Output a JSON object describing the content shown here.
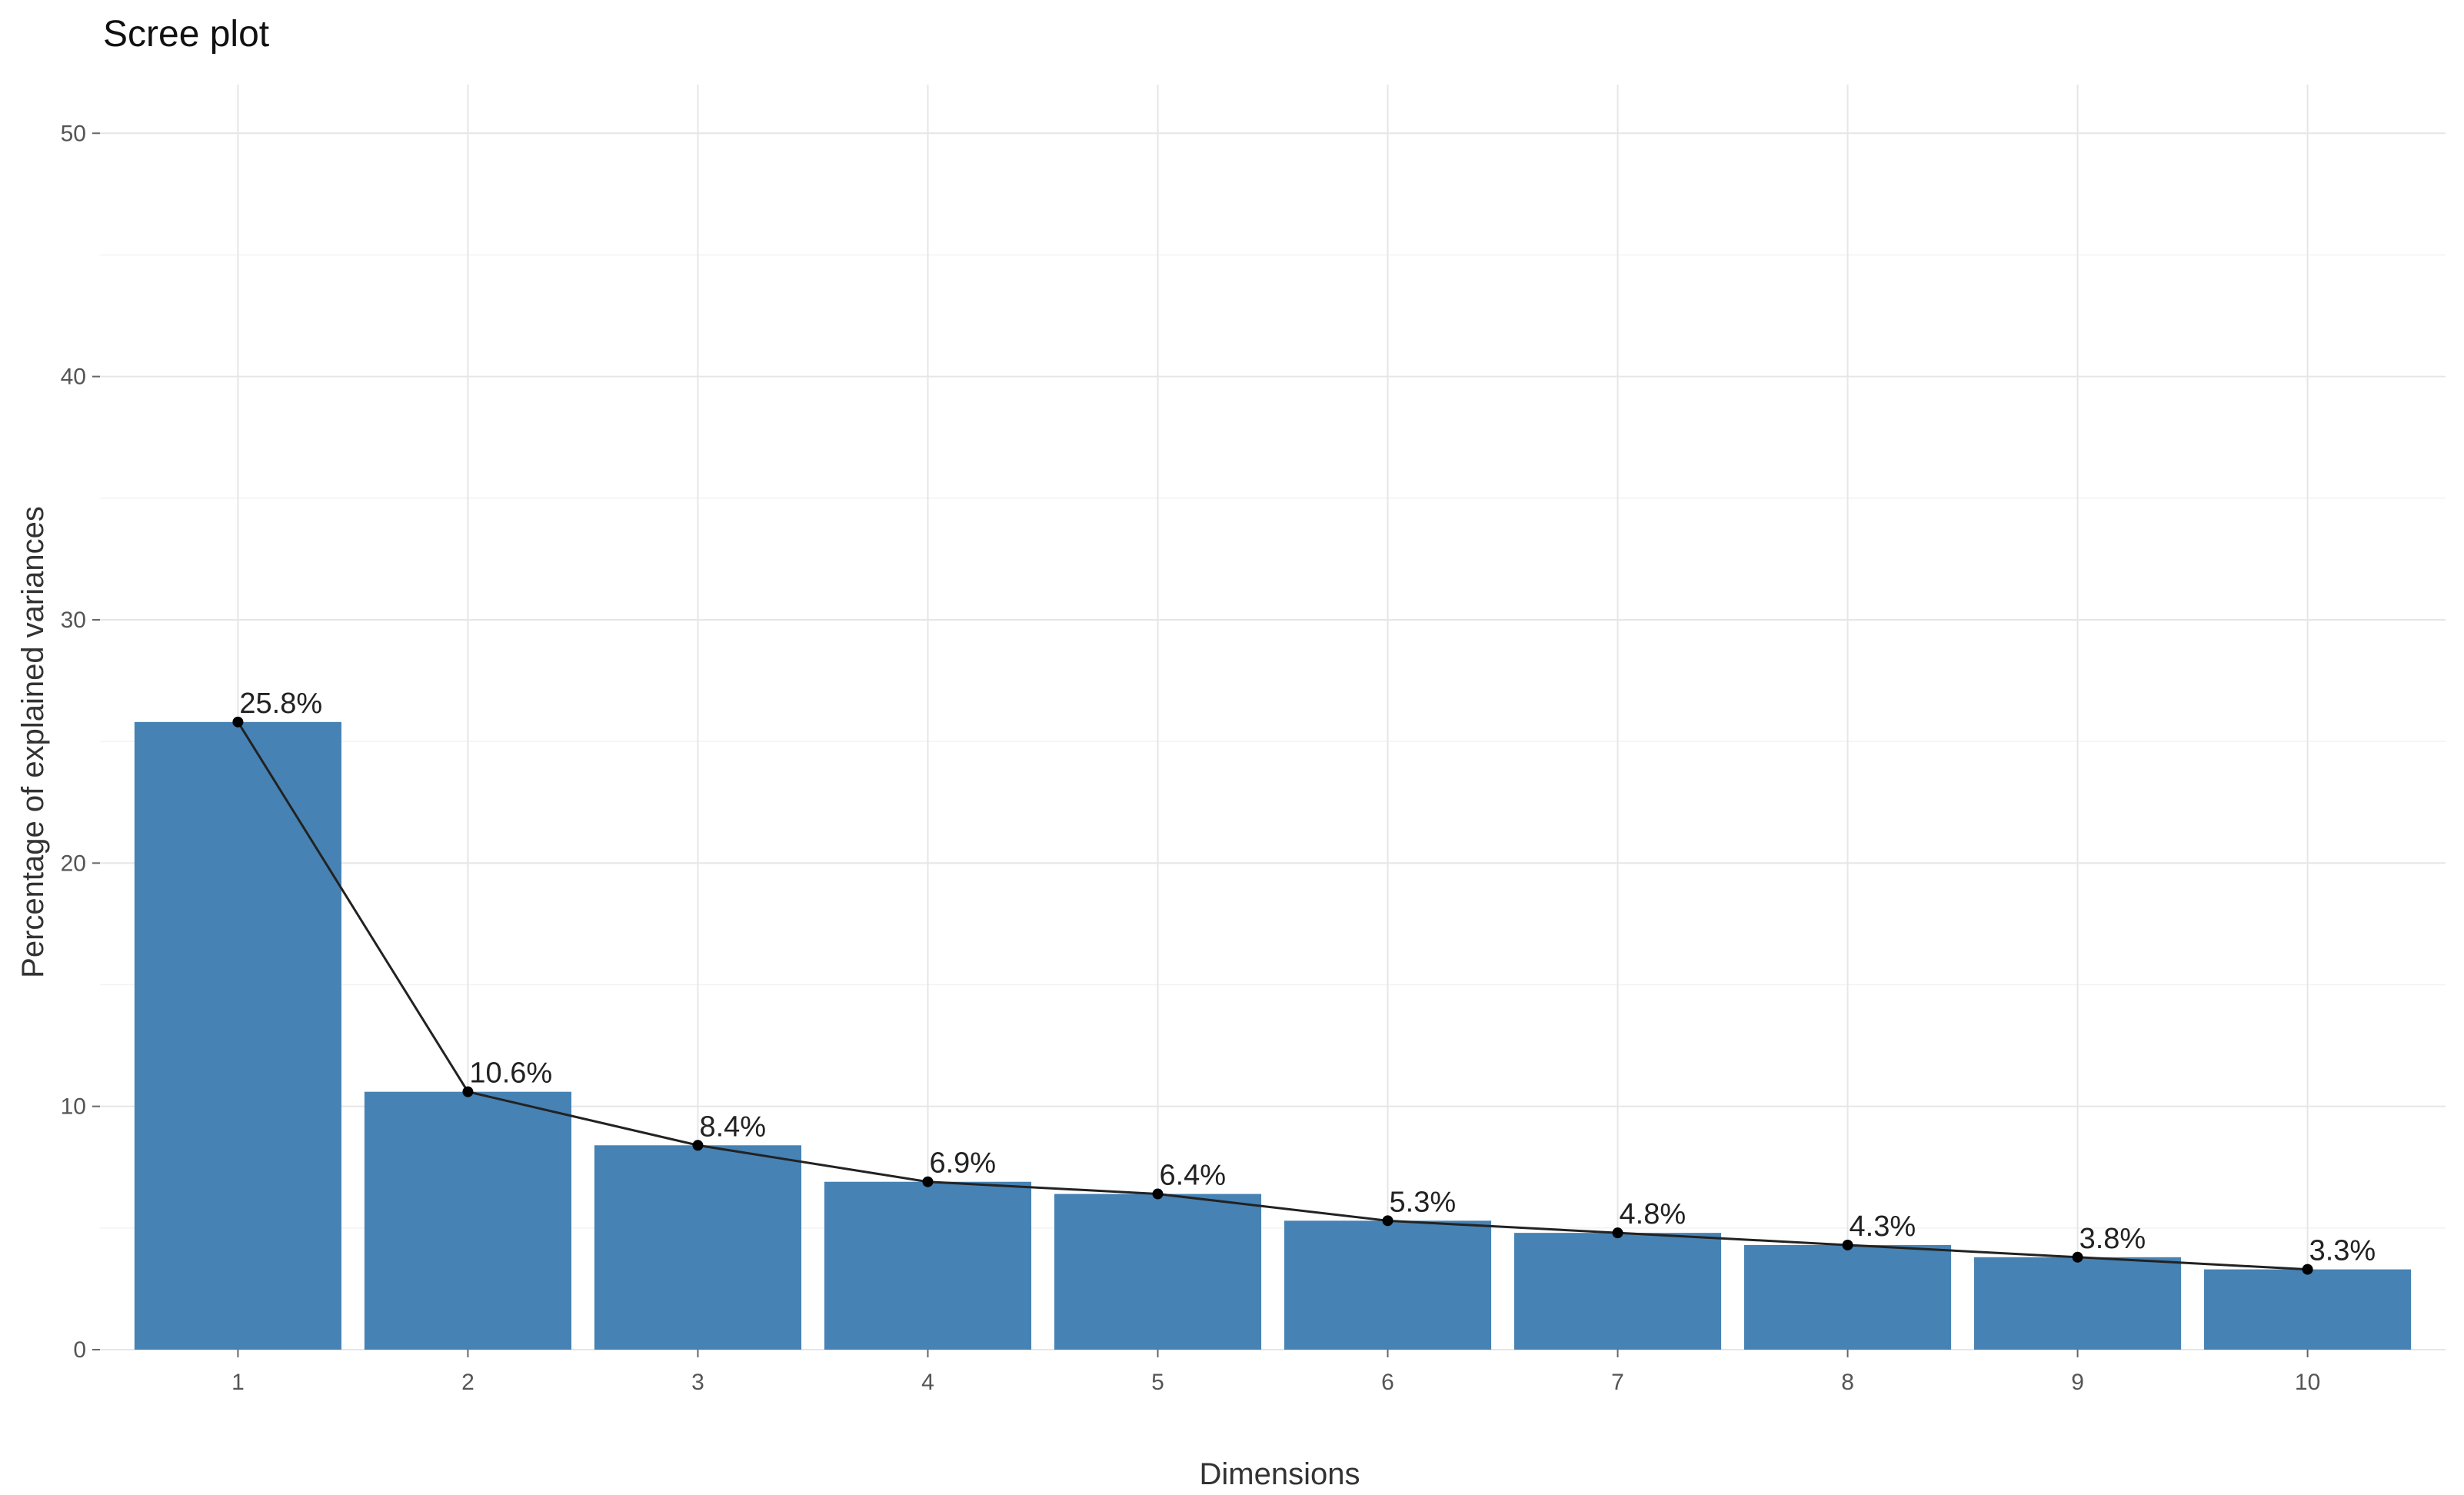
{
  "chart_data": {
    "type": "bar",
    "title": "Scree plot",
    "xlabel": "Dimensions",
    "ylabel": "Percentage of explained variances",
    "categories": [
      "1",
      "2",
      "3",
      "4",
      "5",
      "6",
      "7",
      "8",
      "9",
      "10"
    ],
    "values": [
      25.8,
      10.6,
      8.4,
      6.9,
      6.4,
      5.3,
      4.8,
      4.3,
      3.8,
      3.3
    ],
    "data_labels": [
      "25.8%",
      "10.6%",
      "8.4%",
      "6.9%",
      "6.4%",
      "5.3%",
      "4.8%",
      "4.3%",
      "3.8%",
      "3.3%"
    ],
    "line_overlay": true,
    "ylim": [
      0,
      52
    ],
    "yticks": [
      0,
      10,
      20,
      30,
      40,
      50
    ],
    "grid": true,
    "legend": "none",
    "colors": {
      "bar": "#4682B4",
      "line": "#222222",
      "point": "#000000"
    }
  }
}
